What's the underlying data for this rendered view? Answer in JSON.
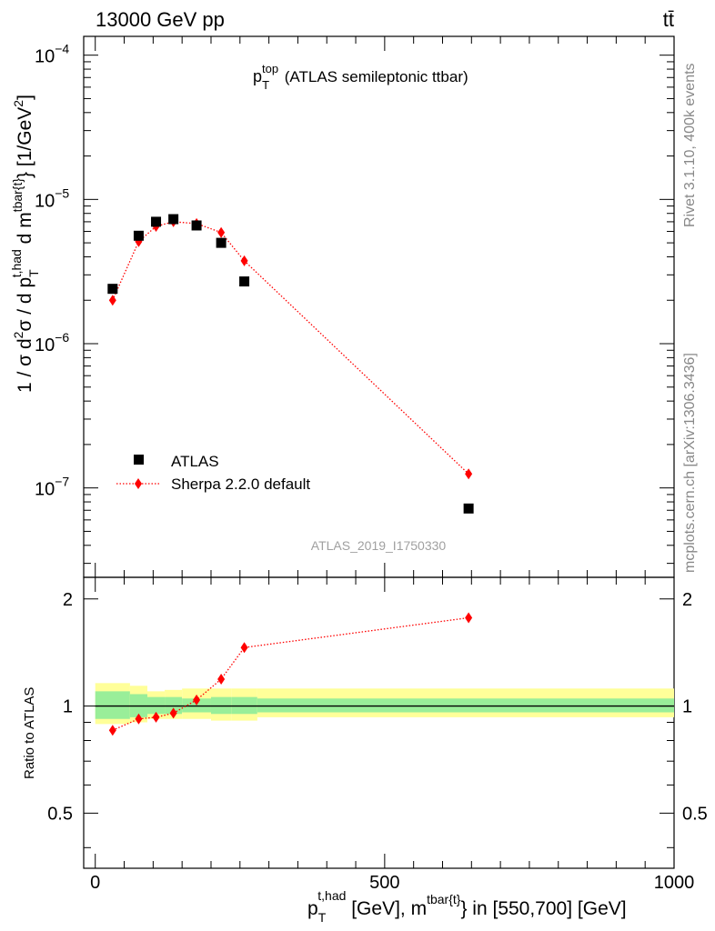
{
  "header": {
    "energy": "13000 GeV pp",
    "process": "tt̄"
  },
  "side_labels": {
    "rivet": "Rivet 3.1.10,  400k events",
    "mcplots": "mcplots.cern.ch [arXiv:1306.3436]"
  },
  "watermark": "ATLAS_2019_I1750330",
  "chart_data": [
    {
      "type": "scatter",
      "title": "p_T^top (ATLAS semileptonic ttbar)",
      "title_main": "p",
      "title_sup": "top",
      "title_sub": "T",
      "title_rest": " (ATLAS semileptonic ttbar)",
      "ylabel": "1 / σ d²σ / d p_T^{t,had} d m^{tbar{t}} [1/GeV²]",
      "ylabel_parts": {
        "a": "1 / σ d",
        "a_sup": "2",
        "b": "σ / d p",
        "b_sub": "T",
        "b_sup": "t,had",
        "c": " d m",
        "c_sup": "tbar{t}",
        "d": "} [1/GeV",
        "d_sup": "2",
        "e": "]"
      },
      "yscale": "log",
      "xlim": [
        -20,
        1000
      ],
      "ylim": [
        2.4e-08,
        0.000135
      ],
      "y_ticks": [
        {
          "value": 1e-07,
          "base": "10",
          "exp": "−7"
        },
        {
          "value": 1e-06,
          "base": "10",
          "exp": "−6"
        },
        {
          "value": 1e-05,
          "base": "10",
          "exp": "−5"
        },
        {
          "value": 0.0001,
          "base": "10",
          "exp": "−4"
        }
      ],
      "legend": {
        "position": "bottom-left",
        "entries": [
          "ATLAS",
          "Sherpa 2.2.0 default"
        ]
      },
      "series": [
        {
          "name": "ATLAS",
          "marker": "square",
          "color": "#000000",
          "x": [
            30,
            75,
            105,
            135,
            175,
            217.5,
            257.5,
            645
          ],
          "y": [
            2.4e-06,
            5.6e-06,
            7e-06,
            7.3e-06,
            6.6e-06,
            5e-06,
            2.7e-06,
            7.2e-08
          ]
        },
        {
          "name": "Sherpa 2.2.0 default",
          "marker": "diamond",
          "color": "#ff0000",
          "line": "dotted",
          "x": [
            30,
            75,
            105,
            135,
            175,
            217.5,
            257.5,
            645
          ],
          "y": [
            2e-06,
            5.1e-06,
            6.5e-06,
            7e-06,
            6.8e-06,
            5.9e-06,
            3.75e-06,
            1.25e-07
          ]
        }
      ]
    },
    {
      "type": "line",
      "ylabel": "Ratio to ATLAS",
      "xlabel_parts": {
        "a": "p",
        "a_sub": "T",
        "a_sup": "t,had",
        "b": " [GeV], m",
        "b_sup": "tbar{t}",
        "c": "} in [550,700] [GeV]"
      },
      "xlabel": "p_T^{t,had} [GeV], m^{tbar{t}} in [550,700] [GeV]",
      "xlim": [
        -20,
        1000
      ],
      "ylim": [
        0.35,
        2.3
      ],
      "yscale": "log",
      "x_ticks": [
        0,
        500,
        1000
      ],
      "y_ticks": [
        0.5,
        1,
        2
      ],
      "reference": 1,
      "bands": {
        "bin_edges": [
          0,
          60,
          90,
          120,
          150,
          200,
          235,
          280,
          1000
        ],
        "inner": [
          [
            0.92,
            1.1
          ],
          [
            0.93,
            1.08
          ],
          [
            0.95,
            1.06
          ],
          [
            0.95,
            1.06
          ],
          [
            0.96,
            1.05
          ],
          [
            0.95,
            1.06
          ],
          [
            0.95,
            1.06
          ],
          [
            0.96,
            1.05
          ]
        ],
        "outer": [
          [
            0.89,
            1.16
          ],
          [
            0.9,
            1.14
          ],
          [
            0.92,
            1.1
          ],
          [
            0.92,
            1.11
          ],
          [
            0.92,
            1.12
          ],
          [
            0.91,
            1.12
          ],
          [
            0.91,
            1.12
          ],
          [
            0.93,
            1.12
          ]
        ]
      },
      "series": [
        {
          "name": "Sherpa 2.2.0 default",
          "color": "#ff0000",
          "x": [
            30,
            75,
            105,
            135,
            175,
            217.5,
            257.5,
            645
          ],
          "y": [
            0.855,
            0.92,
            0.93,
            0.955,
            1.04,
            1.19,
            1.46,
            1.77
          ]
        }
      ]
    }
  ]
}
